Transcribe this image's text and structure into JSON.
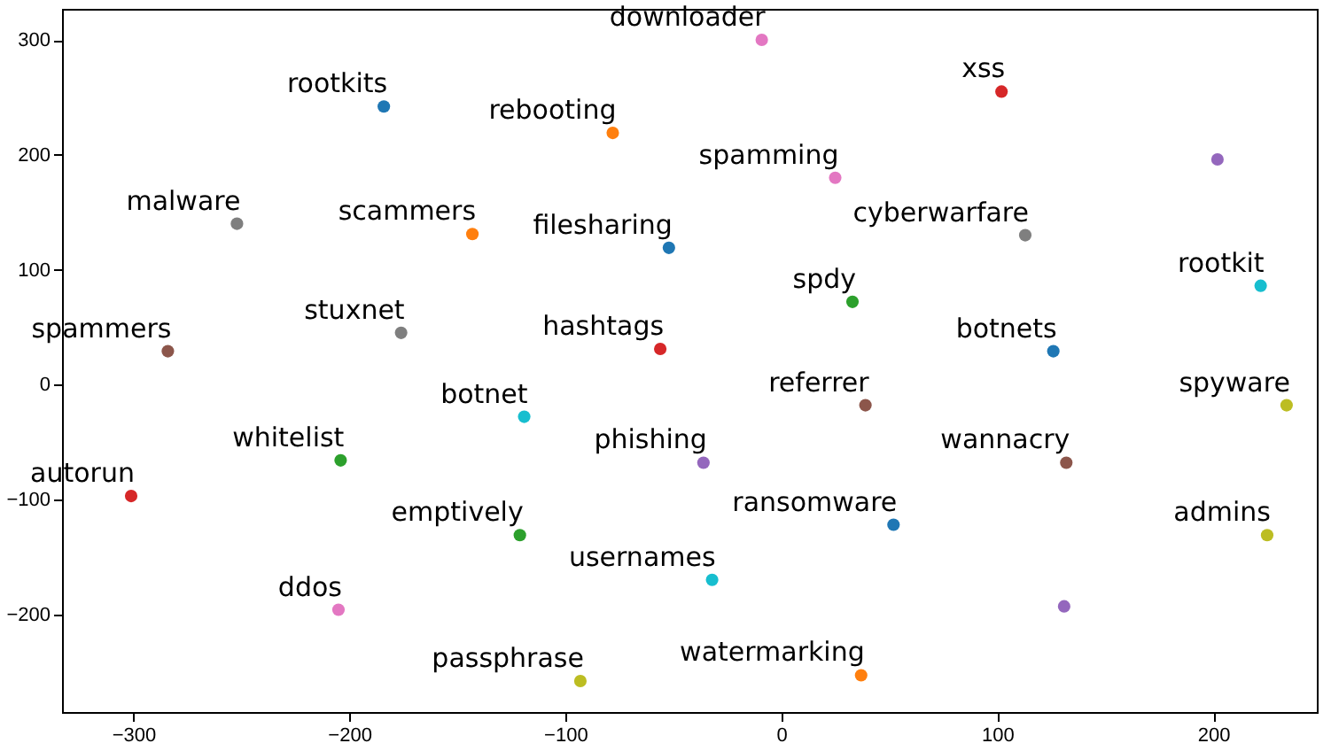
{
  "chart_data": {
    "type": "scatter",
    "marker": "circle",
    "xlim": [
      -333,
      248
    ],
    "ylim": [
      -285,
      327
    ],
    "xticks": [
      -300,
      -200,
      -100,
      0,
      100,
      200
    ],
    "yticks": [
      -200,
      -100,
      0,
      100,
      200,
      300
    ],
    "series": [
      {
        "name": "downloader",
        "color": "#e377c2",
        "x": [
          -9
        ],
        "values": [
          300
        ]
      },
      {
        "name": "xss",
        "color": "#d62728",
        "x": [
          102
        ],
        "values": [
          255
        ]
      },
      {
        "name": "rootkits",
        "color": "#1f77b4",
        "x": [
          -184
        ],
        "values": [
          242
        ]
      },
      {
        "name": "rebooting",
        "color": "#ff7f0e",
        "x": [
          -78
        ],
        "values": [
          219
        ]
      },
      {
        "color": "#9467bd",
        "x": [
          202
        ],
        "values": [
          196
        ]
      },
      {
        "name": "spamming",
        "color": "#e377c2",
        "x": [
          25
        ],
        "values": [
          180
        ]
      },
      {
        "name": "malware",
        "color": "#7f7f7f",
        "x": [
          -252
        ],
        "values": [
          140
        ]
      },
      {
        "name": "scammers",
        "color": "#ff7f0e",
        "x": [
          -143
        ],
        "values": [
          131
        ]
      },
      {
        "name": "cyberwarfare",
        "color": "#7f7f7f",
        "x": [
          113
        ],
        "values": [
          130
        ]
      },
      {
        "name": "filesharing",
        "color": "#1f77b4",
        "x": [
          -52
        ],
        "values": [
          119
        ]
      },
      {
        "name": "rootkit",
        "color": "#17becf",
        "x": [
          222
        ],
        "values": [
          86
        ]
      },
      {
        "name": "spdy",
        "color": "#2ca02c",
        "x": [
          33
        ],
        "values": [
          72
        ]
      },
      {
        "name": "stuxnet",
        "color": "#7f7f7f",
        "x": [
          -176
        ],
        "values": [
          45
        ]
      },
      {
        "name": "spammers",
        "color": "#8c564b",
        "x": [
          -284
        ],
        "values": [
          29
        ]
      },
      {
        "name": "hashtags",
        "color": "#d62728",
        "x": [
          -56
        ],
        "values": [
          31
        ]
      },
      {
        "name": "botnets",
        "color": "#1f77b4",
        "x": [
          126
        ],
        "values": [
          29
        ]
      },
      {
        "name": "spyware",
        "color": "#bcbd22",
        "x": [
          234
        ],
        "values": [
          -18
        ]
      },
      {
        "name": "referrer",
        "color": "#8c564b",
        "x": [
          39
        ],
        "values": [
          -18
        ]
      },
      {
        "name": "botnet",
        "color": "#17becf",
        "x": [
          -119
        ],
        "values": [
          -28
        ]
      },
      {
        "name": "whitelist",
        "color": "#2ca02c",
        "x": [
          -204
        ],
        "values": [
          -66
        ]
      },
      {
        "name": "phishing",
        "color": "#9467bd",
        "x": [
          -36
        ],
        "values": [
          -68
        ]
      },
      {
        "name": "wannacry",
        "color": "#8c564b",
        "x": [
          132
        ],
        "values": [
          -68
        ]
      },
      {
        "name": "autorun",
        "color": "#d62728",
        "x": [
          -301
        ],
        "values": [
          -97
        ]
      },
      {
        "name": "ransomware",
        "color": "#1f77b4",
        "x": [
          52
        ],
        "values": [
          -122
        ]
      },
      {
        "name": "emptively",
        "color": "#2ca02c",
        "x": [
          -121
        ],
        "values": [
          -131
        ]
      },
      {
        "name": "admins",
        "color": "#bcbd22",
        "x": [
          225
        ],
        "values": [
          -131
        ]
      },
      {
        "name": "usernames",
        "color": "#17becf",
        "x": [
          -32
        ],
        "values": [
          -170
        ]
      },
      {
        "color": "#9467bd",
        "x": [
          131
        ],
        "values": [
          -193
        ]
      },
      {
        "name": "ddos",
        "color": "#e377c2",
        "x": [
          -205
        ],
        "values": [
          -196
        ]
      },
      {
        "name": "passphrase",
        "color": "#bcbd22",
        "x": [
          -93
        ],
        "values": [
          -258
        ]
      },
      {
        "name": "watermarking",
        "color": "#ff7f0e",
        "x": [
          37
        ],
        "values": [
          -253
        ]
      }
    ]
  }
}
